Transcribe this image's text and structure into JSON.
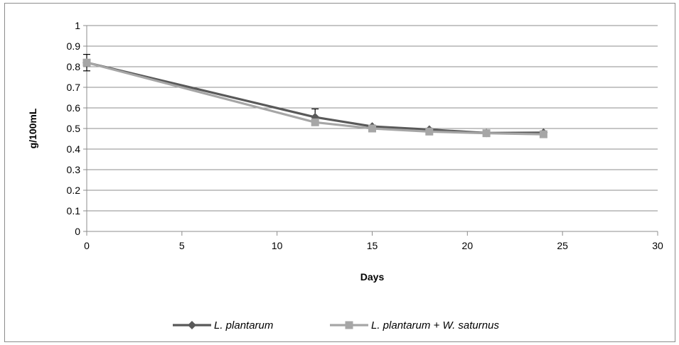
{
  "chart_data": {
    "type": "line",
    "title": "",
    "xlabel": "Days",
    "ylabel": "g/100mL",
    "xlim": [
      0,
      30
    ],
    "ylim": [
      0,
      1
    ],
    "xticks": [
      "0",
      "5",
      "10",
      "15",
      "20",
      "25",
      "30"
    ],
    "yticks": [
      "0",
      "0.1",
      "0.2",
      "0.3",
      "0.4",
      "0.5",
      "0.6",
      "0.7",
      "0.8",
      "0.9",
      "1"
    ],
    "grid": "horizontal",
    "legend_position": "bottom",
    "series": [
      {
        "name": "L. plantarum",
        "marker": "diamond",
        "color": "#595959",
        "x": [
          0,
          12,
          15,
          18,
          21,
          24
        ],
        "y": [
          0.82,
          0.555,
          0.51,
          0.495,
          0.478,
          0.48
        ],
        "error_bars": [
          {
            "x": 0,
            "minus": 0.04,
            "plus": 0.04
          },
          {
            "x": 12,
            "minus": 0,
            "plus": 0.04
          }
        ]
      },
      {
        "name": "L. plantarum + W. saturnus",
        "marker": "square",
        "color": "#a6a6a6",
        "x": [
          0,
          12,
          15,
          18,
          21,
          24
        ],
        "y": [
          0.82,
          0.53,
          0.5,
          0.485,
          0.477,
          0.472
        ]
      }
    ]
  }
}
